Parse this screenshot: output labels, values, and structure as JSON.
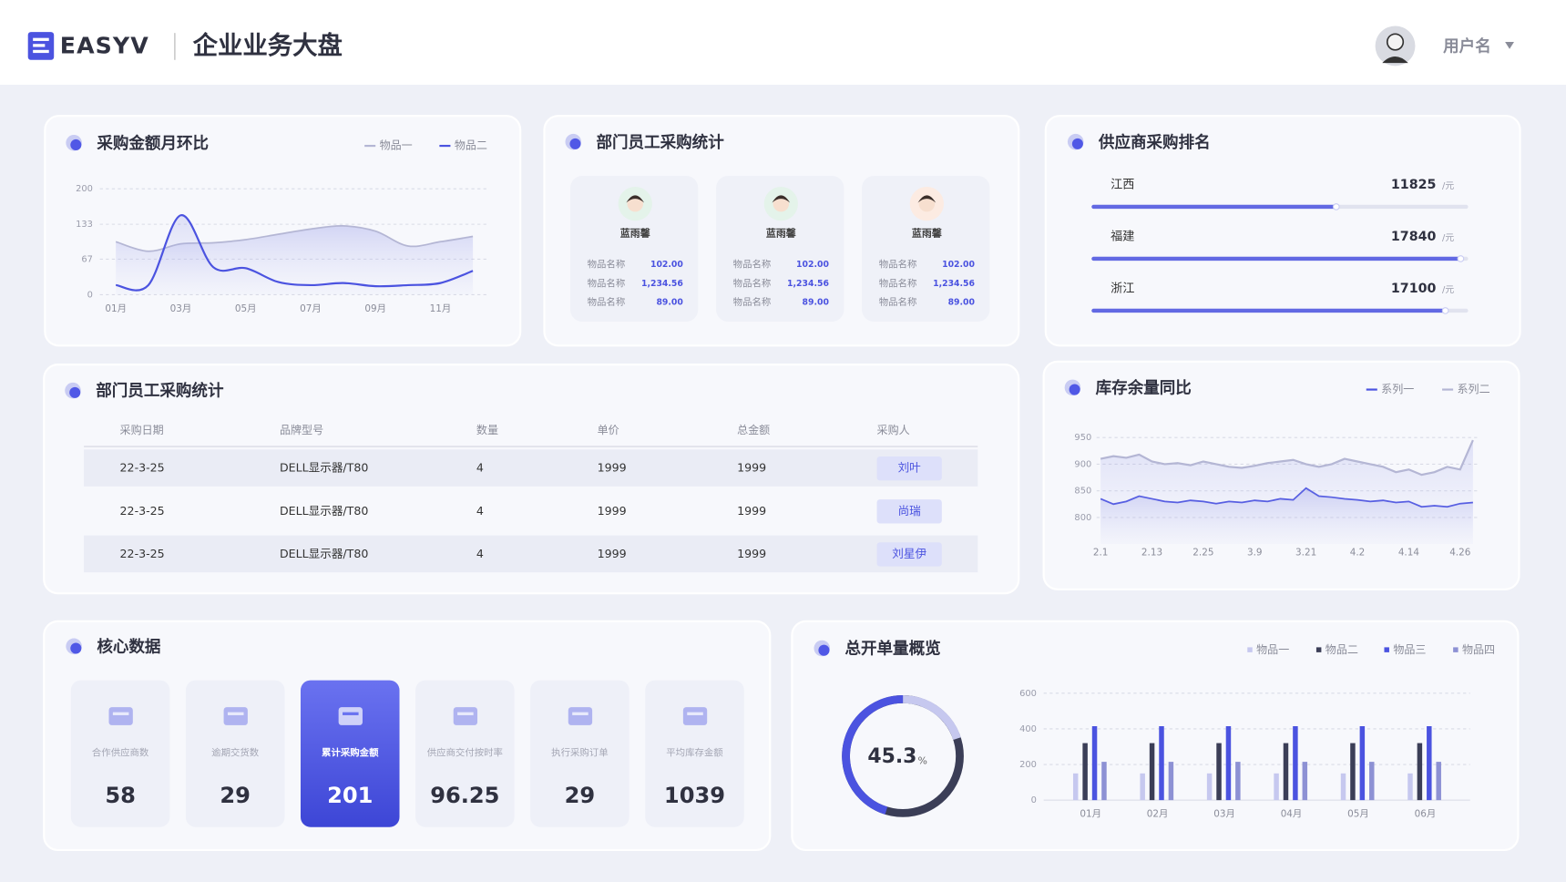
{
  "header": {
    "logo": "EASYV",
    "title": "企业业务大盘",
    "user": "用户名"
  },
  "purchase_trend": {
    "type": "line",
    "title": "采购金额月环比",
    "categories": [
      "01月",
      null,
      "03月",
      null,
      "05月",
      null,
      "07月",
      null,
      "09月",
      null,
      "11月",
      null
    ],
    "series": [
      {
        "name": "物品一",
        "color": "#b4b6d4",
        "values": [
          100,
          82,
          96,
          98,
          104,
          114,
          124,
          130,
          120,
          92,
          100,
          110
        ]
      },
      {
        "name": "物品二",
        "color": "#4b53e0",
        "values": [
          18,
          18,
          150,
          52,
          50,
          24,
          18,
          22,
          16,
          18,
          22,
          45
        ]
      }
    ],
    "ylim": [
      0,
      200
    ],
    "yticks": [
      0,
      67,
      133,
      200
    ],
    "grid": true
  },
  "staff": {
    "title": "部门员工采购统计",
    "cards": [
      {
        "name": "蓝雨馨",
        "rows": [
          {
            "label": "物品名称",
            "value": "102.00"
          },
          {
            "label": "物品名称",
            "value": "1,234.56"
          },
          {
            "label": "物品名称",
            "value": "89.00"
          }
        ]
      },
      {
        "name": "蓝雨馨",
        "rows": [
          {
            "label": "物品名称",
            "value": "102.00"
          },
          {
            "label": "物品名称",
            "value": "1,234.56"
          },
          {
            "label": "物品名称",
            "value": "89.00"
          }
        ]
      },
      {
        "name": "蓝雨馨",
        "rows": [
          {
            "label": "物品名称",
            "value": "102.00"
          },
          {
            "label": "物品名称",
            "value": "1,234.56"
          },
          {
            "label": "物品名称",
            "value": "89.00"
          }
        ]
      }
    ]
  },
  "suppliers": {
    "type": "bar",
    "title": "供应商采购排名",
    "unit": "/元",
    "color": "#4b53e0",
    "xlim": [
      0,
      18200
    ],
    "items": [
      {
        "name": "江西",
        "value": 11825
      },
      {
        "name": "福建",
        "value": 17840
      },
      {
        "name": "浙江",
        "value": 17100
      }
    ]
  },
  "table": {
    "title": "部门员工采购统计",
    "columns": [
      "采购日期",
      "品牌型号",
      "数量",
      "单价",
      "总金额",
      "采购人"
    ],
    "rows": [
      [
        "22-3-25",
        "DELL显示器/T80",
        4,
        1999,
        1999,
        "刘叶"
      ],
      [
        "22-3-25",
        "DELL显示器/T80",
        4,
        1999,
        1999,
        "尚瑞"
      ],
      [
        "22-3-25",
        "DELL显示器/T80",
        4,
        1999,
        1999,
        "刘星伊"
      ]
    ]
  },
  "inventory": {
    "type": "line",
    "title": "库存余量同比",
    "categories": [
      "2.1",
      null,
      null,
      null,
      "2.13",
      null,
      null,
      null,
      "2.25",
      null,
      null,
      null,
      "3.9",
      null,
      null,
      null,
      "3.21",
      null,
      null,
      null,
      "4.2",
      null,
      null,
      null,
      "4.14",
      null,
      null,
      null,
      "4.26",
      null
    ],
    "series": [
      {
        "name": "系列一",
        "color": "#4b53e0",
        "values": [
          835,
          825,
          830,
          840,
          835,
          830,
          828,
          832,
          830,
          826,
          830,
          828,
          832,
          830,
          835,
          833,
          855,
          840,
          838,
          835,
          833,
          830,
          832,
          828,
          830,
          820,
          822,
          820,
          826,
          828
        ]
      },
      {
        "name": "系列二",
        "color": "#b4b6d4",
        "values": [
          910,
          915,
          912,
          918,
          905,
          900,
          902,
          898,
          905,
          900,
          895,
          893,
          897,
          902,
          905,
          908,
          900,
          895,
          900,
          910,
          905,
          900,
          895,
          885,
          890,
          880,
          885,
          895,
          890,
          945
        ]
      }
    ],
    "ylim": [
      750,
      950
    ],
    "yticks": [
      800,
      850,
      900,
      950
    ],
    "grid": true
  },
  "core": {
    "title": "核心数据",
    "items": [
      {
        "label": "合作供应商数",
        "value": 58
      },
      {
        "label": "逾期交货数",
        "value": 29
      },
      {
        "label": "累计采购金额",
        "value": 201,
        "highlighted": true
      },
      {
        "label": "供应商交付按时率",
        "value": 96.25
      },
      {
        "label": "执行采购订单",
        "value": 29
      },
      {
        "label": "平均库存金额",
        "value": 1039
      }
    ]
  },
  "orders": {
    "title": "总开单量概览",
    "rate": {
      "type": "pie",
      "value": 45.3,
      "unit": "%",
      "color": "#4b53e0"
    },
    "bars": {
      "type": "bar",
      "categories": [
        "01月",
        "02月",
        "03月",
        "04月",
        "05月",
        "06月"
      ],
      "series": [
        {
          "name": "物品一",
          "color": "#c6c8ef",
          "values": [
            150,
            150,
            150,
            150,
            150,
            150
          ]
        },
        {
          "name": "物品二",
          "color": "#3b3e57",
          "values": [
            320,
            320,
            320,
            320,
            320,
            320
          ]
        },
        {
          "name": "物品三",
          "color": "#4b53e0",
          "values": [
            415,
            415,
            415,
            415,
            415,
            415
          ]
        },
        {
          "name": "物品四",
          "color": "#8d91d4",
          "values": [
            215,
            215,
            215,
            215,
            215,
            215
          ]
        }
      ],
      "ylim": [
        0,
        600
      ],
      "yticks": [
        0,
        200,
        400,
        600
      ],
      "grid": true
    }
  }
}
